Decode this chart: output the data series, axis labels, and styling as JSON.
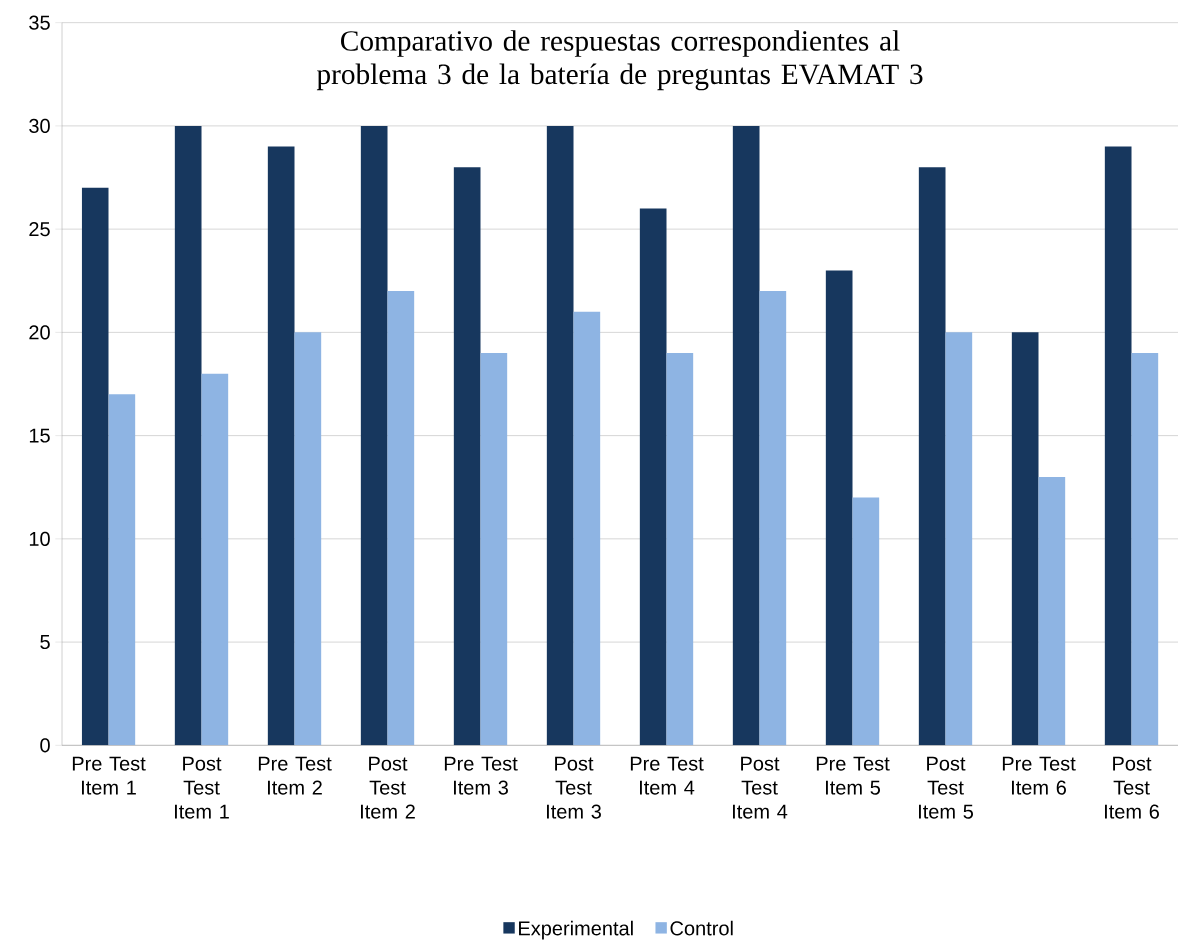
{
  "chart_data": {
    "type": "bar",
    "title": "Comparativo de respuestas correspondientes al problema 3 de la batería de preguntas EVAMAT 3",
    "categories": [
      "Pre Test Item 1",
      "Post Test Item 1",
      "Pre Test Item 2",
      "Post Test Item 2",
      "Pre Test Item 3",
      "Post Test Item 3",
      "Pre Test Item 4",
      "Post Test Item 4",
      "Pre Test Item 5",
      "Post Test Item 5",
      "Pre Test Item 6",
      "Post Test Item 6"
    ],
    "series": [
      {
        "name": "Experimental",
        "color": "#17375e",
        "values": [
          27,
          30,
          29,
          30,
          28,
          30,
          26,
          30,
          23,
          28,
          20,
          29
        ]
      },
      {
        "name": "Control",
        "color": "#8eb4e3",
        "values": [
          17,
          18,
          20,
          22,
          19,
          21,
          19,
          22,
          12,
          20,
          13,
          19
        ]
      }
    ],
    "ylim": [
      0,
      35
    ],
    "yticks": [
      0,
      5,
      10,
      15,
      20,
      25,
      30,
      35
    ],
    "grid": "y",
    "legend": "bottom"
  }
}
